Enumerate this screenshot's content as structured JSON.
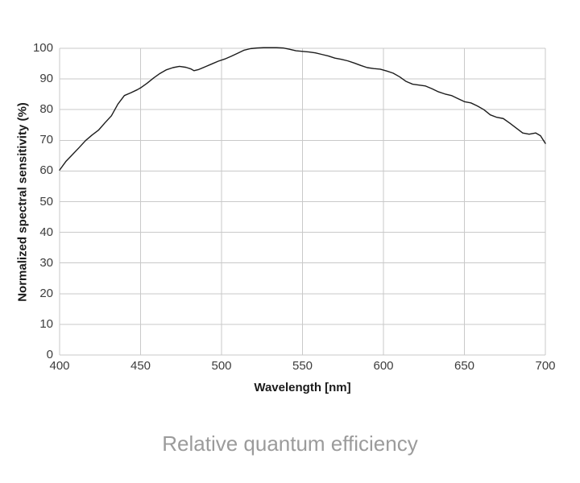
{
  "figure": {
    "caption": "Relative quantum efficiency"
  },
  "chart_data": {
    "type": "line",
    "title": "Relative quantum efficiency",
    "xlabel": "Wavelength [nm]",
    "ylabel": "Normalized spectral sensitivity (%)",
    "xlim": [
      400,
      700
    ],
    "ylim": [
      0,
      100
    ],
    "xticks": [
      400,
      450,
      500,
      550,
      600,
      650,
      700
    ],
    "yticks": [
      0,
      10,
      20,
      30,
      40,
      50,
      60,
      70,
      80,
      90,
      100
    ],
    "grid": true,
    "legend_position": "none",
    "series": [
      {
        "name": "normalized-spectral-sensitivity",
        "points": [
          [
            400,
            60.3
          ],
          [
            404,
            63.2
          ],
          [
            408,
            65.4
          ],
          [
            412,
            67.6
          ],
          [
            416,
            69.9
          ],
          [
            420,
            71.7
          ],
          [
            424,
            73.3
          ],
          [
            428,
            75.7
          ],
          [
            432,
            78.0
          ],
          [
            436,
            81.8
          ],
          [
            440,
            84.6
          ],
          [
            444,
            85.5
          ],
          [
            448,
            86.5
          ],
          [
            450,
            87.1
          ],
          [
            454,
            88.6
          ],
          [
            458,
            90.3
          ],
          [
            462,
            91.8
          ],
          [
            466,
            93.0
          ],
          [
            470,
            93.7
          ],
          [
            474,
            94.1
          ],
          [
            478,
            93.8
          ],
          [
            481,
            93.3
          ],
          [
            483,
            92.7
          ],
          [
            486,
            93.1
          ],
          [
            490,
            94.0
          ],
          [
            494,
            94.9
          ],
          [
            498,
            95.8
          ],
          [
            502,
            96.5
          ],
          [
            506,
            97.4
          ],
          [
            510,
            98.4
          ],
          [
            514,
            99.4
          ],
          [
            518,
            99.9
          ],
          [
            522,
            100.1
          ],
          [
            526,
            100.2
          ],
          [
            530,
            100.2
          ],
          [
            534,
            100.2
          ],
          [
            538,
            100.1
          ],
          [
            542,
            99.7
          ],
          [
            546,
            99.2
          ],
          [
            550,
            99.0
          ],
          [
            554,
            98.8
          ],
          [
            558,
            98.5
          ],
          [
            562,
            98.0
          ],
          [
            566,
            97.5
          ],
          [
            570,
            96.8
          ],
          [
            574,
            96.4
          ],
          [
            578,
            95.9
          ],
          [
            582,
            95.2
          ],
          [
            586,
            94.4
          ],
          [
            590,
            93.7
          ],
          [
            594,
            93.4
          ],
          [
            598,
            93.2
          ],
          [
            602,
            92.6
          ],
          [
            606,
            91.9
          ],
          [
            610,
            90.7
          ],
          [
            614,
            89.2
          ],
          [
            618,
            88.3
          ],
          [
            622,
            88.0
          ],
          [
            626,
            87.7
          ],
          [
            630,
            86.8
          ],
          [
            634,
            85.8
          ],
          [
            638,
            85.1
          ],
          [
            642,
            84.6
          ],
          [
            646,
            83.6
          ],
          [
            650,
            82.6
          ],
          [
            654,
            82.2
          ],
          [
            658,
            81.2
          ],
          [
            662,
            80.0
          ],
          [
            666,
            78.3
          ],
          [
            670,
            77.5
          ],
          [
            674,
            77.1
          ],
          [
            678,
            75.6
          ],
          [
            682,
            74.0
          ],
          [
            686,
            72.4
          ],
          [
            690,
            72.0
          ],
          [
            694,
            72.4
          ],
          [
            697,
            71.5
          ],
          [
            700,
            69.0
          ]
        ]
      }
    ],
    "colors": {
      "line": "#1c1c1c",
      "grid": "#c9c9c9",
      "tick_text": "#3d3d3d",
      "axis_title_text": "#1a1a1a",
      "caption_text": "#9b9b9b",
      "background": "#ffffff"
    }
  }
}
